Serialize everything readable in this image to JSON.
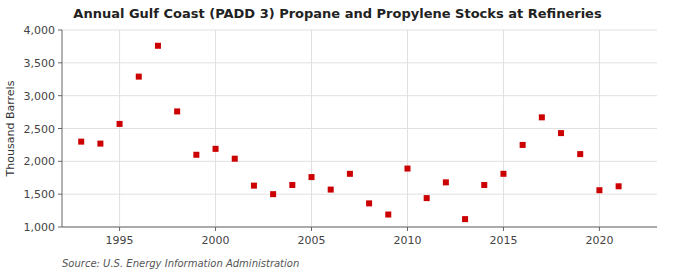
{
  "chart_data": {
    "type": "scatter",
    "title": "Annual Gulf Coast (PADD 3) Propane and Propylene Stocks at Refineries",
    "ylabel": "Thousand Barrels",
    "source": "Source: U.S. Energy Information Administration",
    "x": [
      1993,
      1994,
      1995,
      1996,
      1997,
      1998,
      1999,
      2000,
      2001,
      2002,
      2003,
      2004,
      2005,
      2006,
      2007,
      2008,
      2009,
      2010,
      2011,
      2012,
      2013,
      2014,
      2015,
      2016,
      2017,
      2018,
      2019,
      2020,
      2021
    ],
    "values": [
      2300,
      2270,
      2570,
      3290,
      3760,
      2760,
      2100,
      2190,
      2040,
      1630,
      1500,
      1640,
      1760,
      1570,
      1810,
      1360,
      1190,
      1890,
      1440,
      1680,
      1120,
      1640,
      1810,
      2250,
      2670,
      2430,
      2110,
      1560,
      1620
    ],
    "color": "#cc0000",
    "marker": "square",
    "xlim": [
      1992,
      2023
    ],
    "xticks": [
      1995,
      2000,
      2005,
      2010,
      2015,
      2020
    ],
    "ylim": [
      1000,
      4000
    ],
    "yticks": [
      {
        "value": 1000,
        "label": "1,000"
      },
      {
        "value": 1500,
        "label": "1,500"
      },
      {
        "value": 2000,
        "label": "2,000"
      },
      {
        "value": 2500,
        "label": "2,500"
      },
      {
        "value": 3000,
        "label": "3,000"
      },
      {
        "value": 3500,
        "label": "3,500"
      },
      {
        "value": 4000,
        "label": "4,000"
      }
    ],
    "grid": true
  }
}
